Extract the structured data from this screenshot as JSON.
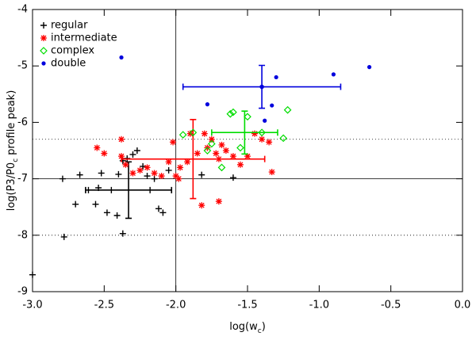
{
  "chart_data": {
    "type": "scatter",
    "x_label": "log(w_c)",
    "y_label": "log(P3/P0_c profile peak)",
    "xlim": [
      -3.0,
      0.0
    ],
    "ylim": [
      -9,
      -4
    ],
    "xticks": [
      {
        "value": -3.0,
        "label": "-3.0"
      },
      {
        "value": -2.5,
        "label": "-2.5"
      },
      {
        "value": -2.0,
        "label": "-2.0"
      },
      {
        "value": -1.5,
        "label": "-1.5"
      },
      {
        "value": -1.0,
        "label": "-1.0"
      },
      {
        "value": -0.5,
        "label": "-0.5"
      },
      {
        "value": 0.0,
        "label": "0.0"
      }
    ],
    "yticks": [
      -9,
      -8,
      -7,
      -6,
      -5,
      -4
    ],
    "legend": "top-left",
    "reference_lines": [
      {
        "axis": "x",
        "value": -2.0,
        "style": "solid"
      },
      {
        "axis": "y",
        "value": -7.0,
        "style": "solid"
      },
      {
        "axis": "y",
        "value": -6.3,
        "style": "dotted"
      },
      {
        "axis": "y",
        "value": -8.0,
        "style": "dotted"
      }
    ],
    "series": [
      {
        "name": "regular",
        "color": "#000000",
        "marker": "plus",
        "x": [
          -3.0,
          -2.79,
          -2.7,
          -2.78,
          -2.67,
          -2.56,
          -2.52,
          -2.61,
          -2.54,
          -2.48,
          -2.41,
          -2.37,
          -2.34,
          -2.3,
          -2.27,
          -2.23,
          -2.2,
          -2.18,
          -2.15,
          -2.12,
          -2.09,
          -2.37,
          -2.05,
          -1.82,
          -1.6,
          -2.45,
          -2.4
        ],
        "values": [
          -8.7,
          -7.0,
          -7.45,
          -8.03,
          -6.93,
          -7.45,
          -6.9,
          -7.2,
          -7.16,
          -7.6,
          -7.65,
          -6.68,
          -6.64,
          -6.57,
          -6.5,
          -6.78,
          -6.95,
          -7.2,
          -7.0,
          -7.53,
          -7.6,
          -7.97,
          -6.85,
          -6.93,
          -6.98,
          -7.2,
          -6.92
        ],
        "mean": {
          "x": -2.33,
          "xerr": 0.3,
          "y": -7.2,
          "yerr": 0.5
        }
      },
      {
        "name": "intermediate",
        "color": "#ff0000",
        "marker": "asterisk",
        "x": [
          -2.55,
          -2.5,
          -2.38,
          -2.35,
          -2.38,
          -2.25,
          -2.2,
          -2.15,
          -2.1,
          -2.05,
          -2.02,
          -2.0,
          -1.98,
          -1.97,
          -1.92,
          -1.9,
          -1.85,
          -1.8,
          -1.78,
          -1.75,
          -1.72,
          -1.7,
          -1.68,
          -1.65,
          -1.6,
          -1.55,
          -1.5,
          -1.45,
          -1.4,
          -1.35,
          -1.33,
          -1.82,
          -1.7,
          -2.3
        ],
        "values": [
          -6.45,
          -6.55,
          -6.6,
          -6.75,
          -6.3,
          -6.85,
          -6.8,
          -6.9,
          -6.95,
          -6.7,
          -6.35,
          -6.95,
          -7.0,
          -6.8,
          -6.7,
          -6.2,
          -6.55,
          -6.2,
          -6.45,
          -6.3,
          -6.55,
          -6.65,
          -6.4,
          -6.5,
          -6.6,
          -6.75,
          -6.6,
          -6.2,
          -6.3,
          -6.35,
          -6.88,
          -7.47,
          -7.4,
          -6.9
        ],
        "mean": {
          "x": -1.88,
          "xerr": 0.5,
          "y": -6.65,
          "yerr": 0.7
        }
      },
      {
        "name": "complex",
        "color": "#00dd00",
        "marker": "diamond",
        "x": [
          -1.95,
          -1.88,
          -1.78,
          -1.75,
          -1.68,
          -1.62,
          -1.6,
          -1.55,
          -1.5,
          -1.4,
          -1.25,
          -1.22
        ],
        "values": [
          -6.22,
          -6.18,
          -6.5,
          -6.38,
          -6.8,
          -5.85,
          -5.82,
          -6.45,
          -5.9,
          -6.18,
          -6.28,
          -5.78
        ],
        "mean": {
          "x": -1.52,
          "xerr": 0.23,
          "y": -6.18,
          "yerr": 0.38
        }
      },
      {
        "name": "double",
        "color": "#0000dd",
        "marker": "dot",
        "x": [
          -2.38,
          -1.78,
          -1.38,
          -1.33,
          -1.3,
          -0.9,
          -0.65
        ],
        "values": [
          -4.85,
          -5.68,
          -5.97,
          -5.7,
          -5.2,
          -5.15,
          -5.02
        ],
        "mean": {
          "x": -1.4,
          "xerr": 0.55,
          "y": -5.37,
          "yerr": 0.38
        }
      }
    ]
  }
}
